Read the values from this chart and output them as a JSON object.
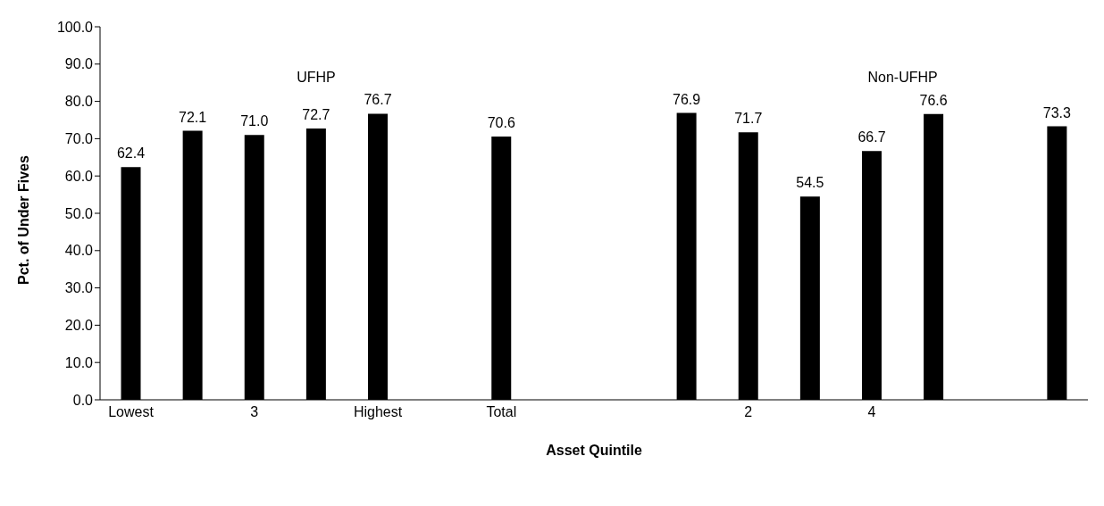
{
  "chart_data": {
    "type": "bar",
    "xlabel": "Asset Quintile",
    "ylabel": "Pct. of Under Fives",
    "categories": [
      "Lowest",
      null,
      "3",
      null,
      "Highest",
      null,
      "Total",
      null,
      null,
      null,
      "2",
      null,
      "4",
      null,
      null,
      null
    ],
    "values": [
      62.4,
      72.1,
      71.0,
      72.7,
      76.7,
      null,
      70.6,
      null,
      null,
      76.9,
      71.7,
      54.5,
      66.7,
      76.6,
      null,
      73.3
    ],
    "value_labels": [
      "62.4",
      "72.1",
      "71.0",
      "72.7",
      "76.7",
      null,
      "70.6",
      null,
      null,
      "76.9",
      "71.7",
      "54.5",
      "66.7",
      "76.6",
      null,
      "73.3"
    ],
    "color": "#000000",
    "ylim": [
      0,
      100
    ],
    "yticks": [
      {
        "value": 0,
        "label": "0.0"
      },
      {
        "value": 10,
        "label": "10.0"
      },
      {
        "value": 20,
        "label": "20.0"
      },
      {
        "value": 30,
        "label": "30.0"
      },
      {
        "value": 40,
        "label": "40.0"
      },
      {
        "value": 50,
        "label": "50.0"
      },
      {
        "value": 60,
        "label": "60.0"
      },
      {
        "value": 70,
        "label": "70.0"
      },
      {
        "value": 80,
        "label": "80.0"
      },
      {
        "value": 90,
        "label": "90.0"
      },
      {
        "value": 100,
        "label": "100.0"
      }
    ],
    "annotations": [
      "UFHP",
      "Non-UFHP"
    ],
    "grid": false,
    "legend": false
  }
}
